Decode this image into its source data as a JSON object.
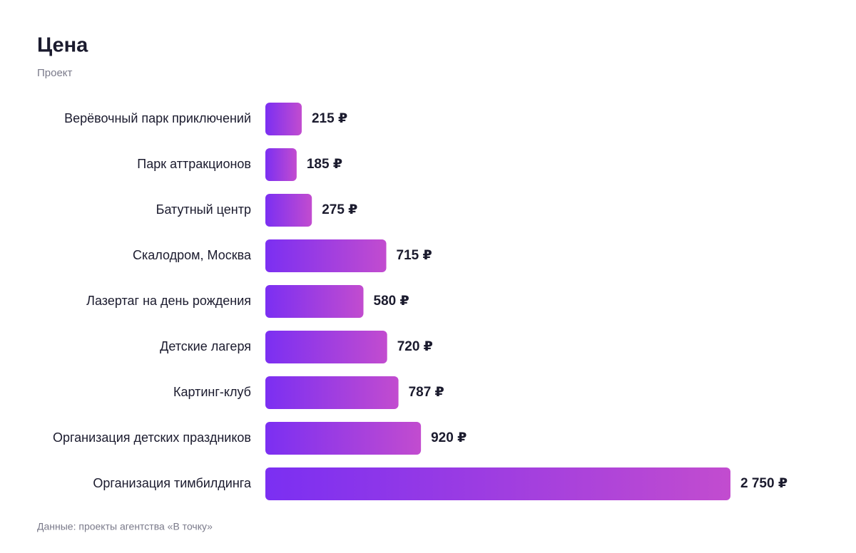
{
  "chart_data": {
    "type": "hbar",
    "title": "Цена",
    "subtitle": "Проект",
    "categories": [
      "Верёвочный парк приключений",
      "Парк аттракционов",
      "Батутный центр",
      "Скалодром, Москва",
      "Лазертаг на день рождения",
      "Детские лагеря",
      "Картинг-клуб",
      "Организация детских праздников",
      "Организация тимбилдинга"
    ],
    "values": [
      215,
      185,
      275,
      715,
      580,
      720,
      787,
      920,
      2750
    ],
    "value_labels": [
      "215 ₽",
      "185 ₽",
      "275 ₽",
      "715 ₽",
      "580 ₽",
      "720 ₽",
      "787 ₽",
      "920 ₽",
      "2 750 ₽"
    ],
    "colors": [
      "#7b2ff2",
      "#c24ccf"
    ],
    "source": "Данные: проекты агентства «В точку»"
  }
}
